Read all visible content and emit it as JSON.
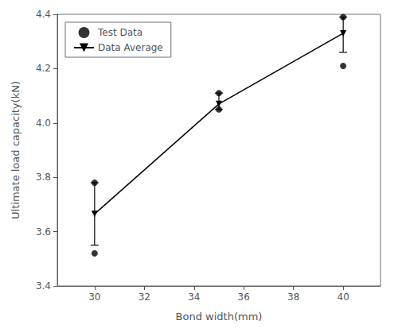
{
  "chart_data": {
    "type": "scatter",
    "xlabel": "Bond width(mm)",
    "ylabel": "Ultimate load capacity(kN)",
    "xlim": [
      28.5,
      41.5
    ],
    "ylim": [
      3.4,
      4.4
    ],
    "xticks": [
      30,
      32,
      34,
      36,
      38,
      40
    ],
    "yticks": [
      3.4,
      3.6,
      3.8,
      {
        "value": 4.0,
        "label": "4.0"
      },
      4.2,
      4.4
    ],
    "grid": false,
    "legend": "upper left",
    "series": [
      {
        "name": "Test Data",
        "type": "scatter",
        "marker": "circle",
        "color": "black",
        "x": [
          30,
          30,
          35,
          35,
          40,
          40
        ],
        "values": [
          3.52,
          3.78,
          4.05,
          4.11,
          4.21,
          4.39
        ]
      },
      {
        "name": "Data Average",
        "type": "line",
        "marker": "triangle_down",
        "line_style": "solid",
        "color": "black",
        "x": [
          30,
          35,
          40
        ],
        "values": [
          3.665,
          4.07,
          4.33
        ],
        "error_low": [
          0.115,
          0.02,
          0.07
        ],
        "error_high": [
          0.115,
          0.04,
          0.06
        ]
      }
    ]
  }
}
